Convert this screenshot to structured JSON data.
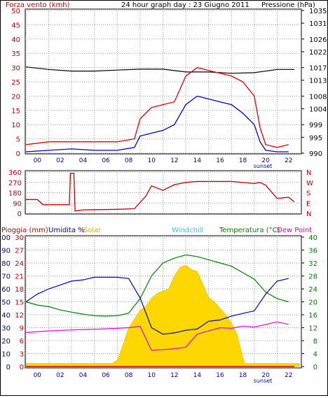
{
  "header": {
    "wind_label": "Forza vento (kmh)",
    "title": "24 hour graph day : 23 Giugno 2011",
    "pressure_label": "Pressione (hPa)"
  },
  "panel2": {
    "direction_labels": [
      "N",
      "W",
      "S",
      "E",
      "N"
    ]
  },
  "panel3": {
    "legend": {
      "rain": "Pioggia (mm)",
      "humidity": "Umidita %",
      "solar": "Solar",
      "windchill": "Windchill",
      "temperature": "Temperatura (°C)",
      "dewpoint": "Dew Point"
    }
  },
  "x_axis": {
    "tick_labels": [
      "00",
      "02",
      "04",
      "06",
      "08",
      "10",
      "12",
      "14",
      "16",
      "18",
      "20",
      "22"
    ],
    "sunset_label": "sunset"
  },
  "colors": {
    "wind_max": "#e00000",
    "wind_avg": "#0000c0",
    "pressure": "#000000",
    "direction": "#c00000",
    "humidity": "#0000c0",
    "solar": "#ffd700",
    "temperature": "#008000",
    "dewpoint": "#e000e0",
    "windchill": "#40c0ff",
    "rain": "#c00000"
  },
  "chart_data": [
    {
      "type": "line",
      "title": "24 hour graph day : 23 Giugno 2011",
      "ylabel": "Forza vento (kmh)",
      "y2label": "Pressione (hPa)",
      "ylim": [
        0,
        50
      ],
      "y_ticks": [
        0,
        5,
        10,
        15,
        20,
        25,
        30,
        35,
        40,
        45,
        50
      ],
      "y2lim": [
        990,
        1035
      ],
      "y2_ticks": [
        990,
        995,
        999,
        1004,
        1008,
        1013,
        1017,
        1022,
        1026,
        1031,
        1035
      ],
      "x_hours": [
        0,
        2,
        4,
        6,
        8,
        10,
        12,
        14,
        16,
        18,
        20,
        22
      ],
      "series": [
        {
          "axis": "left",
          "hours": [
            0,
            2,
            4,
            6,
            8,
            9.5,
            10,
            11,
            12,
            13,
            14,
            15,
            16,
            17,
            18,
            19,
            20,
            20.5,
            21,
            22,
            23
          ],
          "values": [
            3,
            4,
            4,
            4,
            4,
            5,
            12,
            16,
            17,
            18,
            27,
            30,
            29,
            28,
            27,
            25,
            20,
            9,
            3,
            2,
            3
          ]
        },
        {
          "axis": "left",
          "hours": [
            0,
            2,
            4,
            6,
            8,
            9.5,
            10,
            11,
            12,
            13,
            14,
            15,
            16,
            17,
            18,
            19,
            20,
            20.5,
            21,
            22,
            23
          ],
          "values": [
            0.5,
            1,
            1.5,
            1,
            1,
            2,
            6,
            7,
            8,
            10,
            17,
            20,
            19,
            18,
            17,
            14,
            10,
            4,
            1,
            0.5,
            0.5
          ]
        },
        {
          "axis": "right",
          "hours": [
            0,
            2,
            4,
            6,
            8,
            10,
            12,
            14,
            16,
            18,
            20,
            22,
            23.5
          ],
          "values": [
            1017.2,
            1016.4,
            1015.9,
            1015.9,
            1016.2,
            1016.5,
            1016.5,
            1015.6,
            1015.6,
            1015.2,
            1015.4,
            1016.4,
            1016.4
          ]
        }
      ]
    },
    {
      "type": "line",
      "ylim": [
        0,
        360
      ],
      "y_ticks": [
        0,
        90,
        180,
        270,
        360
      ],
      "series": [
        {
          "hours": [
            0,
            1,
            1.5,
            3.8,
            3.9,
            4.2,
            4.3,
            5,
            8,
            9.5,
            10.5,
            11,
            12,
            13,
            14,
            15,
            16,
            18,
            20,
            20.5,
            21,
            22,
            23,
            23.5
          ],
          "values": [
            120,
            120,
            75,
            75,
            350,
            350,
            20,
            30,
            35,
            40,
            150,
            240,
            200,
            250,
            270,
            278,
            278,
            278,
            260,
            270,
            245,
            130,
            140,
            100
          ]
        }
      ]
    },
    {
      "type": "line",
      "ylim_rain": [
        0,
        100
      ],
      "rain_ticks": [
        0,
        10,
        20,
        30,
        40,
        50,
        60,
        70,
        80,
        90,
        100
      ],
      "ylim_inner": [
        0,
        30
      ],
      "inner_ticks": [
        0,
        3,
        6,
        9,
        12,
        15,
        18,
        21,
        24,
        27,
        30
      ],
      "ylim_right": [
        0,
        40
      ],
      "right_ticks": [
        0,
        4,
        8,
        12,
        16,
        20,
        24,
        28,
        32,
        36,
        40
      ],
      "series": [
        {
          "axis": "left",
          "hours": [
            0,
            1,
            2,
            3,
            4,
            5,
            6,
            7,
            8,
            9,
            10,
            11,
            12,
            13,
            14,
            15,
            16,
            17,
            18,
            19,
            20,
            21,
            22,
            23
          ],
          "values": [
            50,
            56,
            60,
            63,
            66,
            67,
            69,
            69,
            69,
            68,
            53,
            30,
            25,
            26,
            28,
            29,
            35,
            36,
            39,
            41,
            43,
            56,
            66,
            68
          ]
        },
        {
          "axis": "right",
          "hours": [
            0,
            1,
            2,
            3,
            4,
            5,
            6,
            7,
            8,
            9,
            10,
            11,
            12,
            13,
            14,
            15,
            16,
            17,
            18,
            19,
            20,
            21,
            22,
            23
          ],
          "values": [
            20,
            19,
            18.5,
            17.5,
            16.8,
            16.2,
            15.7,
            15.6,
            15.7,
            16.5,
            21,
            28,
            32,
            33.5,
            34.5,
            34,
            33,
            32,
            31,
            29,
            27,
            23,
            21,
            20
          ]
        },
        {
          "axis": "right",
          "hours": [
            0,
            2,
            4,
            6,
            8,
            9,
            10,
            11,
            12,
            13,
            14,
            15,
            16,
            17,
            18,
            19,
            20,
            21,
            22,
            23
          ],
          "values": [
            10.5,
            11,
            11.3,
            11.5,
            11.8,
            12,
            12.4,
            5,
            5.2,
            5.5,
            6,
            10,
            11,
            12,
            11.8,
            12.5,
            12.2,
            13,
            13.8,
            13
          ]
        },
        {
          "axis": "inner",
          "hours": [
            6.5,
            7,
            7.5,
            8,
            8.5,
            9,
            9.5,
            10,
            10.5,
            11,
            11.5,
            12,
            12.5,
            13,
            13.5,
            14,
            14.5,
            15,
            15.5,
            16,
            16.5,
            17,
            17.5,
            18,
            18.5,
            19,
            19.2
          ],
          "values": [
            0,
            0.2,
            0.6,
            1.5,
            5,
            9,
            11,
            13,
            14,
            15.8,
            17,
            17.5,
            18,
            21,
            23,
            23.5,
            22.5,
            22,
            19,
            16,
            15,
            13.5,
            12,
            10,
            7.5,
            2,
            0.5
          ]
        },
        {
          "axis": "left",
          "hours": [
            0,
            23.5
          ],
          "values": [
            0,
            0
          ]
        }
      ]
    }
  ]
}
